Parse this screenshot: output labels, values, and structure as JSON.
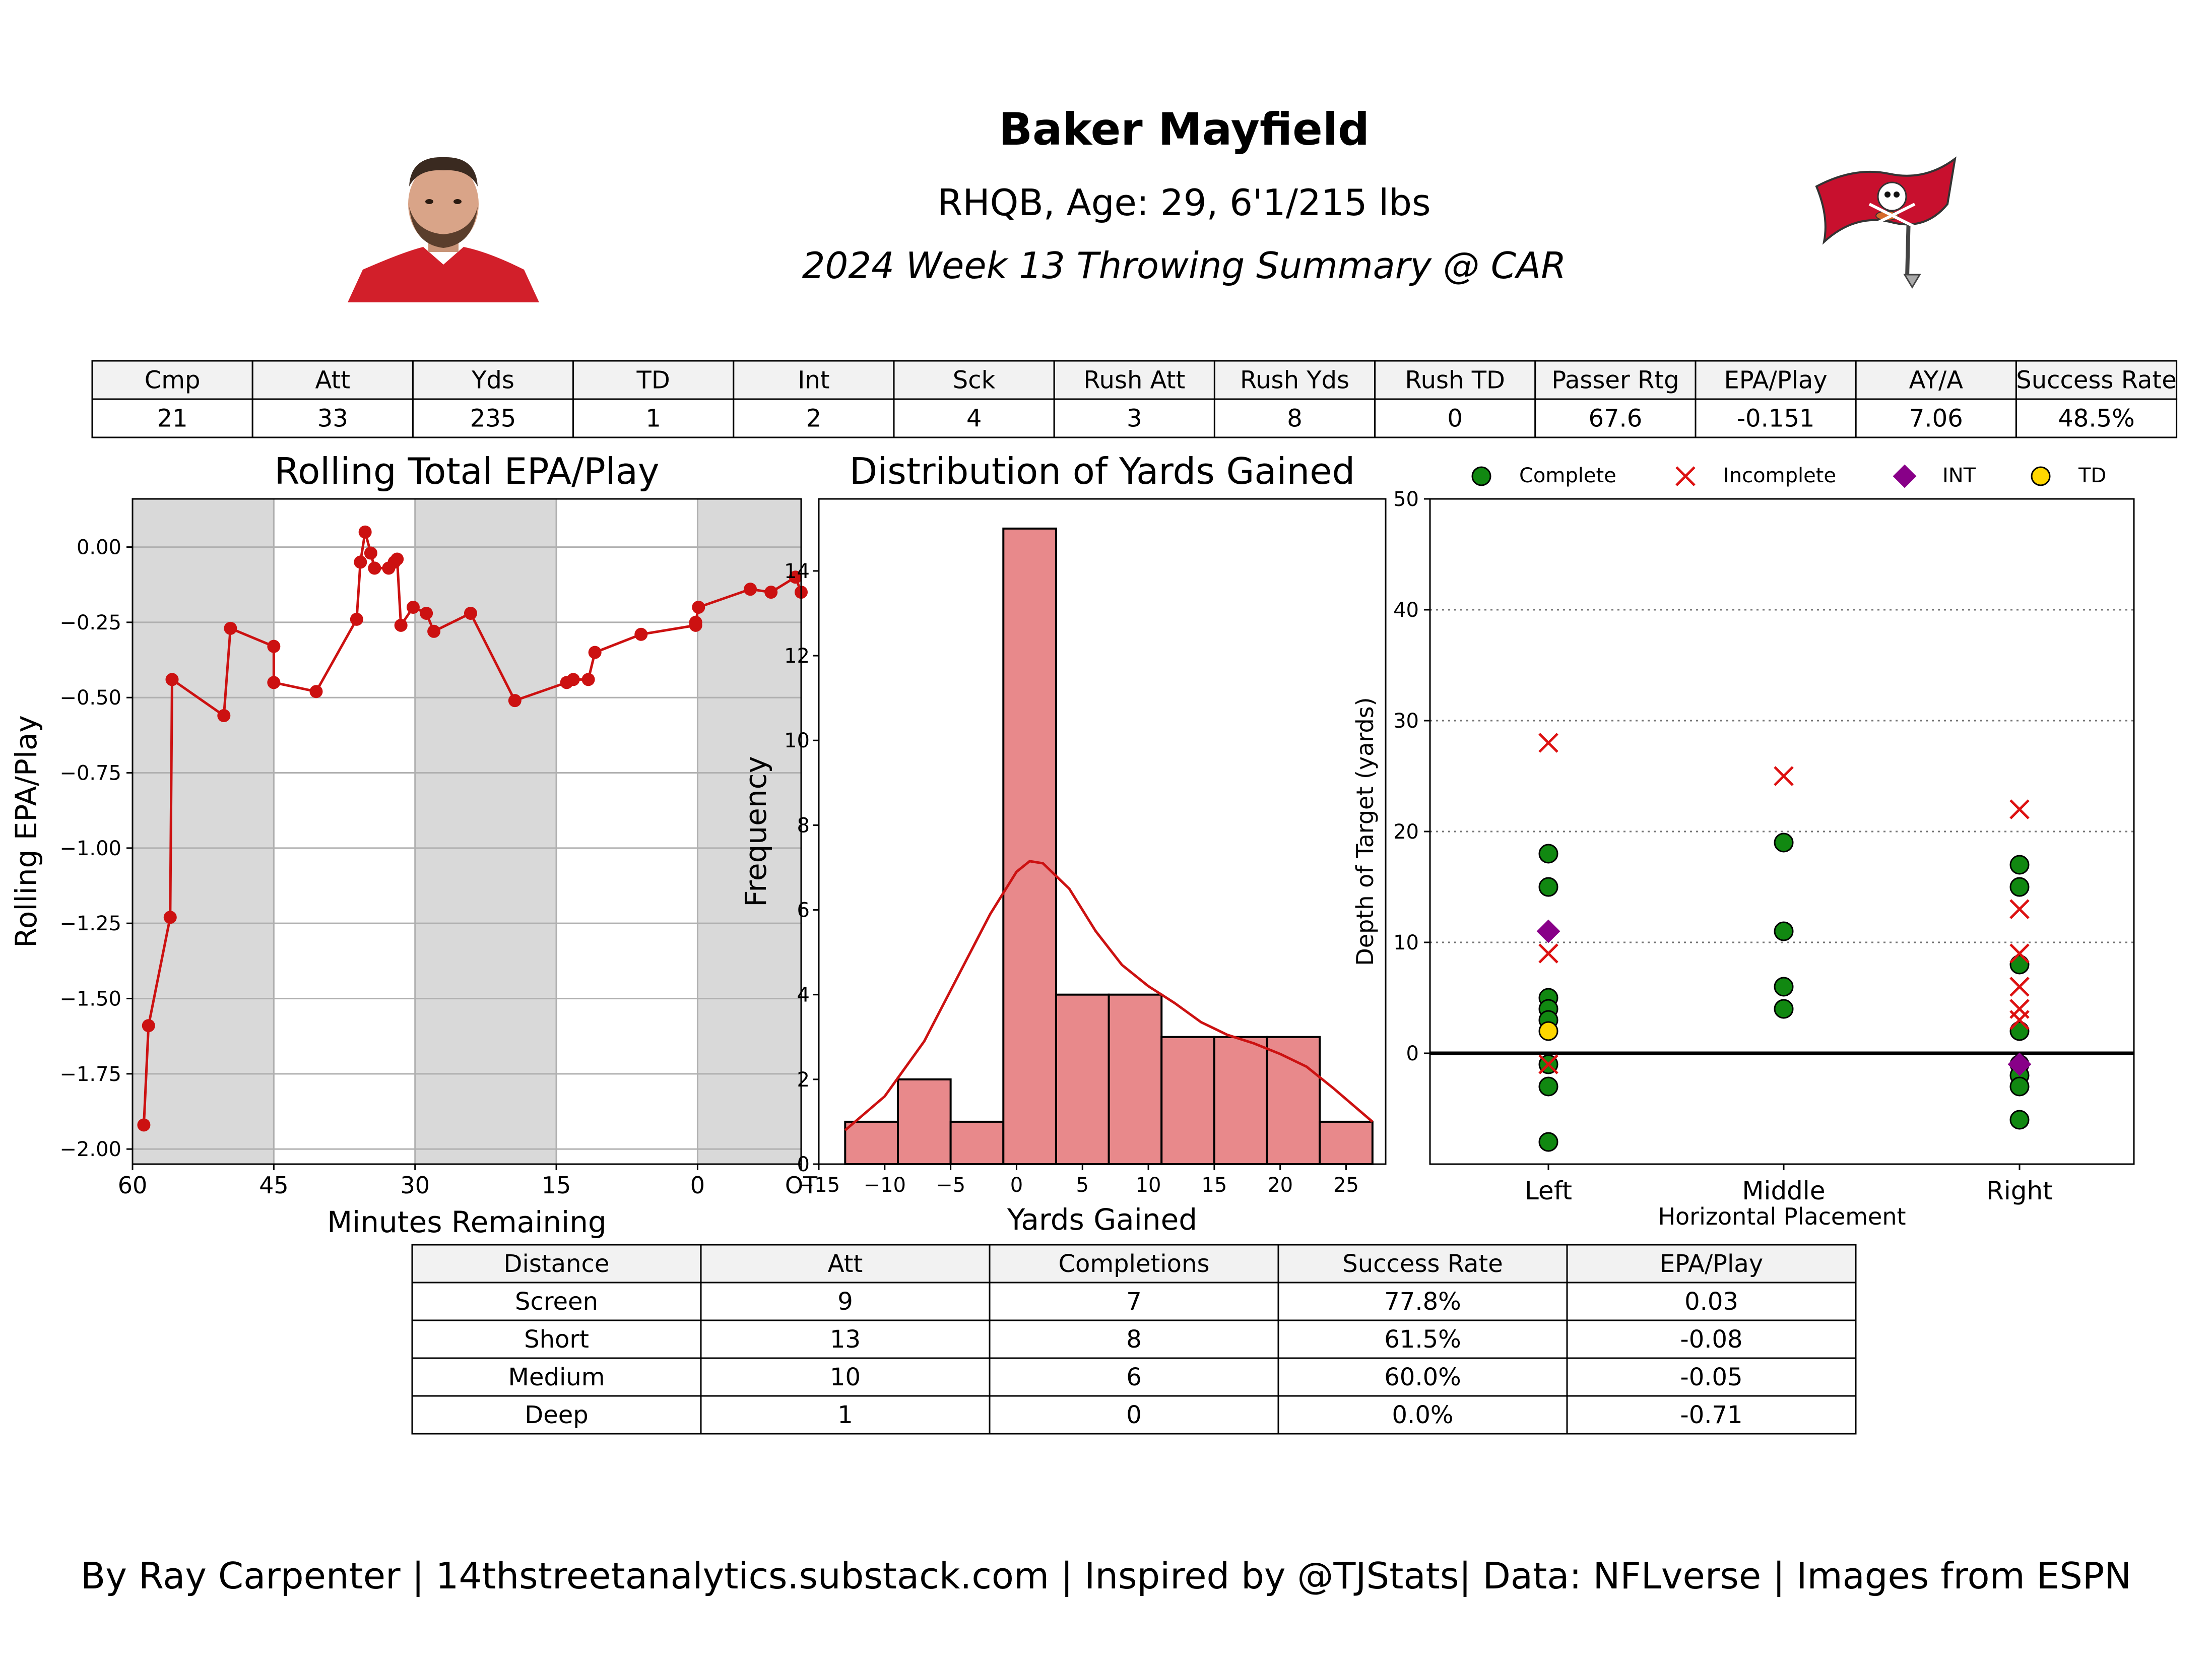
{
  "header": {
    "name": "Baker Mayfield",
    "info": "RHQB, Age: 29, 6'1/215 lbs",
    "game": "2024 Week 13 Throwing Summary @ CAR"
  },
  "stats_table": {
    "headers": [
      "Cmp",
      "Att",
      "Yds",
      "TD",
      "Int",
      "Sck",
      "Rush Att",
      "Rush Yds",
      "Rush TD",
      "Passer Rtg",
      "EPA/Play",
      "AY/A",
      "Success Rate"
    ],
    "values": [
      "21",
      "33",
      "235",
      "1",
      "2",
      "4",
      "3",
      "8",
      "0",
      "67.6",
      "-0.151",
      "7.06",
      "48.5%"
    ]
  },
  "distance_table": {
    "headers": [
      "Distance",
      "Att",
      "Completions",
      "Success Rate",
      "EPA/Play"
    ],
    "rows": [
      [
        "Screen",
        "9",
        "7",
        "77.8%",
        "0.03"
      ],
      [
        "Short",
        "13",
        "8",
        "61.5%",
        "-0.08"
      ],
      [
        "Medium",
        "10",
        "6",
        "60.0%",
        "-0.05"
      ],
      [
        "Deep",
        "1",
        "0",
        "0.0%",
        "-0.71"
      ]
    ]
  },
  "footer": "By Ray Carpenter | 14thstreetanalytics.substack.com | Inspired by @TJStats| Data: NFLverse | Images from ESPN",
  "colors": {
    "line": "#cc1111",
    "hist_fill": "#e8898b",
    "shade": "#d9d9d9",
    "complete": "#118811",
    "incomplete": "#dd1111",
    "int": "#880088",
    "td": "#ffd700"
  },
  "chart_data": [
    {
      "type": "line",
      "title": "Rolling Total EPA/Play",
      "xlabel": "Minutes Remaining",
      "ylabel": "Rolling EPA/Play",
      "xticks": [
        "60",
        "45",
        "30",
        "15",
        "0",
        "OT"
      ],
      "yticks": [
        "0.00",
        "−0.25",
        "−0.50",
        "−0.75",
        "−1.00",
        "−1.25",
        "−1.50",
        "−1.75",
        "−2.00"
      ],
      "xlim": [
        60,
        -11
      ],
      "ylim": [
        -2.05,
        0.16
      ],
      "grid": "y",
      "shaded_intervals": [
        [
          60,
          45
        ],
        [
          30,
          15
        ],
        [
          0,
          -11
        ]
      ],
      "series": [
        {
          "x": [
            58.8,
            58.3,
            56.0,
            55.8,
            50.3,
            49.6,
            45.0,
            45.0,
            40.5,
            36.2,
            35.8,
            35.3,
            34.7,
            34.3,
            32.8,
            32.2,
            31.9,
            31.5,
            30.2,
            28.8,
            28.0,
            24.1,
            19.4,
            13.9,
            13.2,
            11.6,
            10.9,
            6.0,
            0.2,
            0.2,
            -0.1,
            -5.6,
            -7.8,
            -10.4,
            -11
          ],
          "y": [
            -1.92,
            -1.59,
            -1.23,
            -0.44,
            -0.56,
            -0.27,
            -0.33,
            -0.45,
            -0.48,
            -0.24,
            -0.05,
            0.05,
            -0.02,
            -0.07,
            -0.07,
            -0.05,
            -0.04,
            -0.26,
            -0.2,
            -0.22,
            -0.28,
            -0.22,
            -0.51,
            -0.45,
            -0.44,
            -0.44,
            -0.35,
            -0.29,
            -0.26,
            -0.25,
            -0.2,
            -0.14,
            -0.15,
            -0.1,
            -0.15
          ]
        }
      ]
    },
    {
      "type": "bar",
      "title": "Distribution of Yards Gained",
      "xlabel": "Yards Gained",
      "ylabel": "Frequency",
      "xticks": [
        "−15",
        "−10",
        "−5",
        "0",
        "5",
        "10",
        "15",
        "20",
        "25"
      ],
      "yticks": [
        "0",
        "2",
        "4",
        "6",
        "8",
        "10",
        "12",
        "14"
      ],
      "xlim": [
        -15,
        28
      ],
      "ylim": [
        0,
        15.7
      ],
      "bin_edges": [
        -13,
        -9,
        -5,
        -1,
        3,
        7,
        11,
        15,
        19,
        23,
        27
      ],
      "counts": [
        1,
        2,
        1,
        15,
        4,
        4,
        3,
        3,
        3,
        1
      ],
      "kde": {
        "x": [
          -13,
          -10,
          -7,
          -4,
          -2,
          0,
          1,
          2,
          4,
          6,
          8,
          10,
          12,
          14,
          16,
          18,
          20,
          22,
          24,
          27
        ],
        "y": [
          0.8,
          1.6,
          2.9,
          4.7,
          5.9,
          6.9,
          7.15,
          7.1,
          6.5,
          5.5,
          4.7,
          4.2,
          3.8,
          3.35,
          3.05,
          2.85,
          2.6,
          2.3,
          1.8,
          1.0
        ]
      }
    },
    {
      "type": "scatter",
      "xlabel": "Horizontal Placement",
      "ylabel": "Depth of Target (yards)",
      "categories": [
        "Left",
        "Middle",
        "Right"
      ],
      "yticks": [
        "0",
        "10",
        "20",
        "30",
        "40",
        "50"
      ],
      "ylim": [
        -10,
        50
      ],
      "grid": "y-dotted",
      "legend": {
        "placement": "top",
        "entries": [
          "Complete",
          "Incomplete",
          "INT",
          "TD"
        ]
      },
      "series": [
        {
          "name": "Complete",
          "points": [
            [
              "Left",
              18
            ],
            [
              "Left",
              15
            ],
            [
              "Left",
              5
            ],
            [
              "Left",
              4
            ],
            [
              "Left",
              3
            ],
            [
              "Left",
              -1
            ],
            [
              "Left",
              -3
            ],
            [
              "Left",
              -8
            ],
            [
              "Middle",
              19
            ],
            [
              "Middle",
              11
            ],
            [
              "Middle",
              6
            ],
            [
              "Middle",
              4
            ],
            [
              "Right",
              17
            ],
            [
              "Right",
              15
            ],
            [
              "Right",
              8
            ],
            [
              "Right",
              2
            ],
            [
              "Right",
              -1
            ],
            [
              "Right",
              -2
            ],
            [
              "Right",
              -3
            ],
            [
              "Right",
              -6
            ]
          ]
        },
        {
          "name": "Incomplete",
          "points": [
            [
              "Left",
              28
            ],
            [
              "Left",
              9
            ],
            [
              "Left",
              -1
            ],
            [
              "Middle",
              25
            ],
            [
              "Right",
              22
            ],
            [
              "Right",
              13
            ],
            [
              "Right",
              9
            ],
            [
              "Right",
              6
            ],
            [
              "Right",
              4
            ],
            [
              "Right",
              3
            ]
          ]
        },
        {
          "name": "INT",
          "points": [
            [
              "Left",
              11
            ],
            [
              "Right",
              -1
            ]
          ]
        },
        {
          "name": "TD",
          "points": [
            [
              "Left",
              2
            ]
          ]
        }
      ]
    }
  ]
}
